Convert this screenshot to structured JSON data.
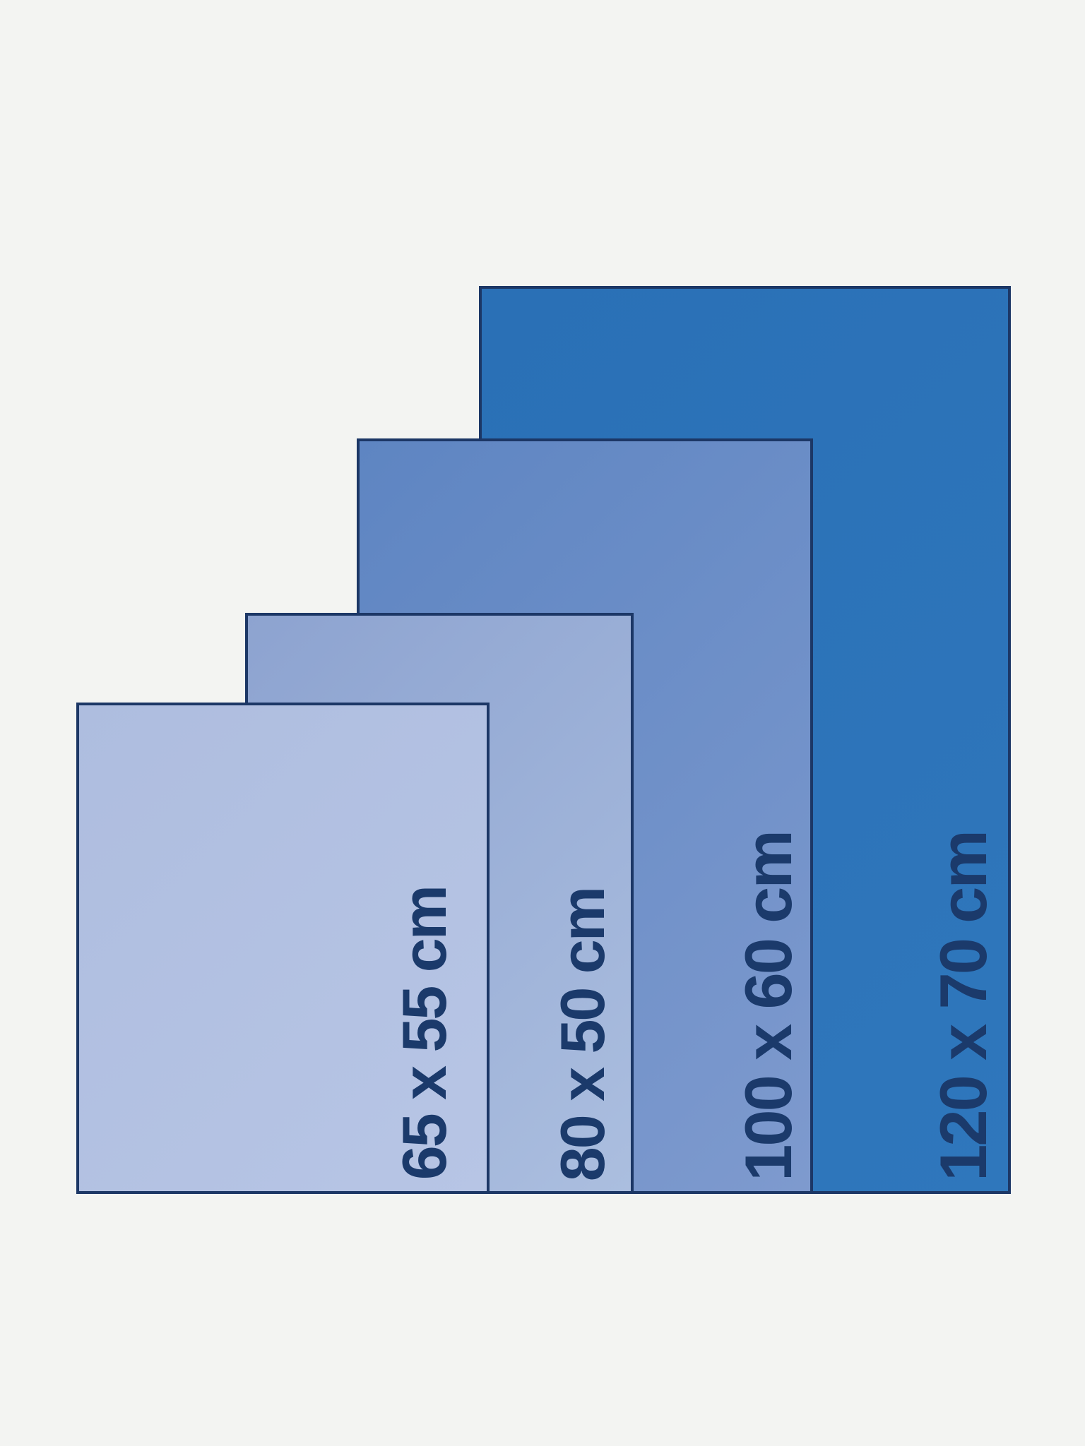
{
  "diagram": {
    "background_color": "#f3f4f2",
    "border_color": "#1c3766",
    "label_color": "#1b3a6b",
    "sizes": [
      {
        "label": "65 x 55 cm",
        "dimensions_cm": [
          65,
          55
        ],
        "fill_start": "#aebddf",
        "fill_end": "#b7c5e5"
      },
      {
        "label": "80 x 50 cm",
        "dimensions_cm": [
          80,
          50
        ],
        "fill_start": "#8da3d0",
        "fill_end": "#abbedf"
      },
      {
        "label": "100 x 60 cm",
        "dimensions_cm": [
          100,
          60
        ],
        "fill_start": "#5e85c2",
        "fill_end": "#7e9ace"
      },
      {
        "label": "120 x 70 cm",
        "dimensions_cm": [
          120,
          70
        ],
        "fill_start": "#2a70b6",
        "fill_end": "#2f77bc"
      }
    ]
  }
}
